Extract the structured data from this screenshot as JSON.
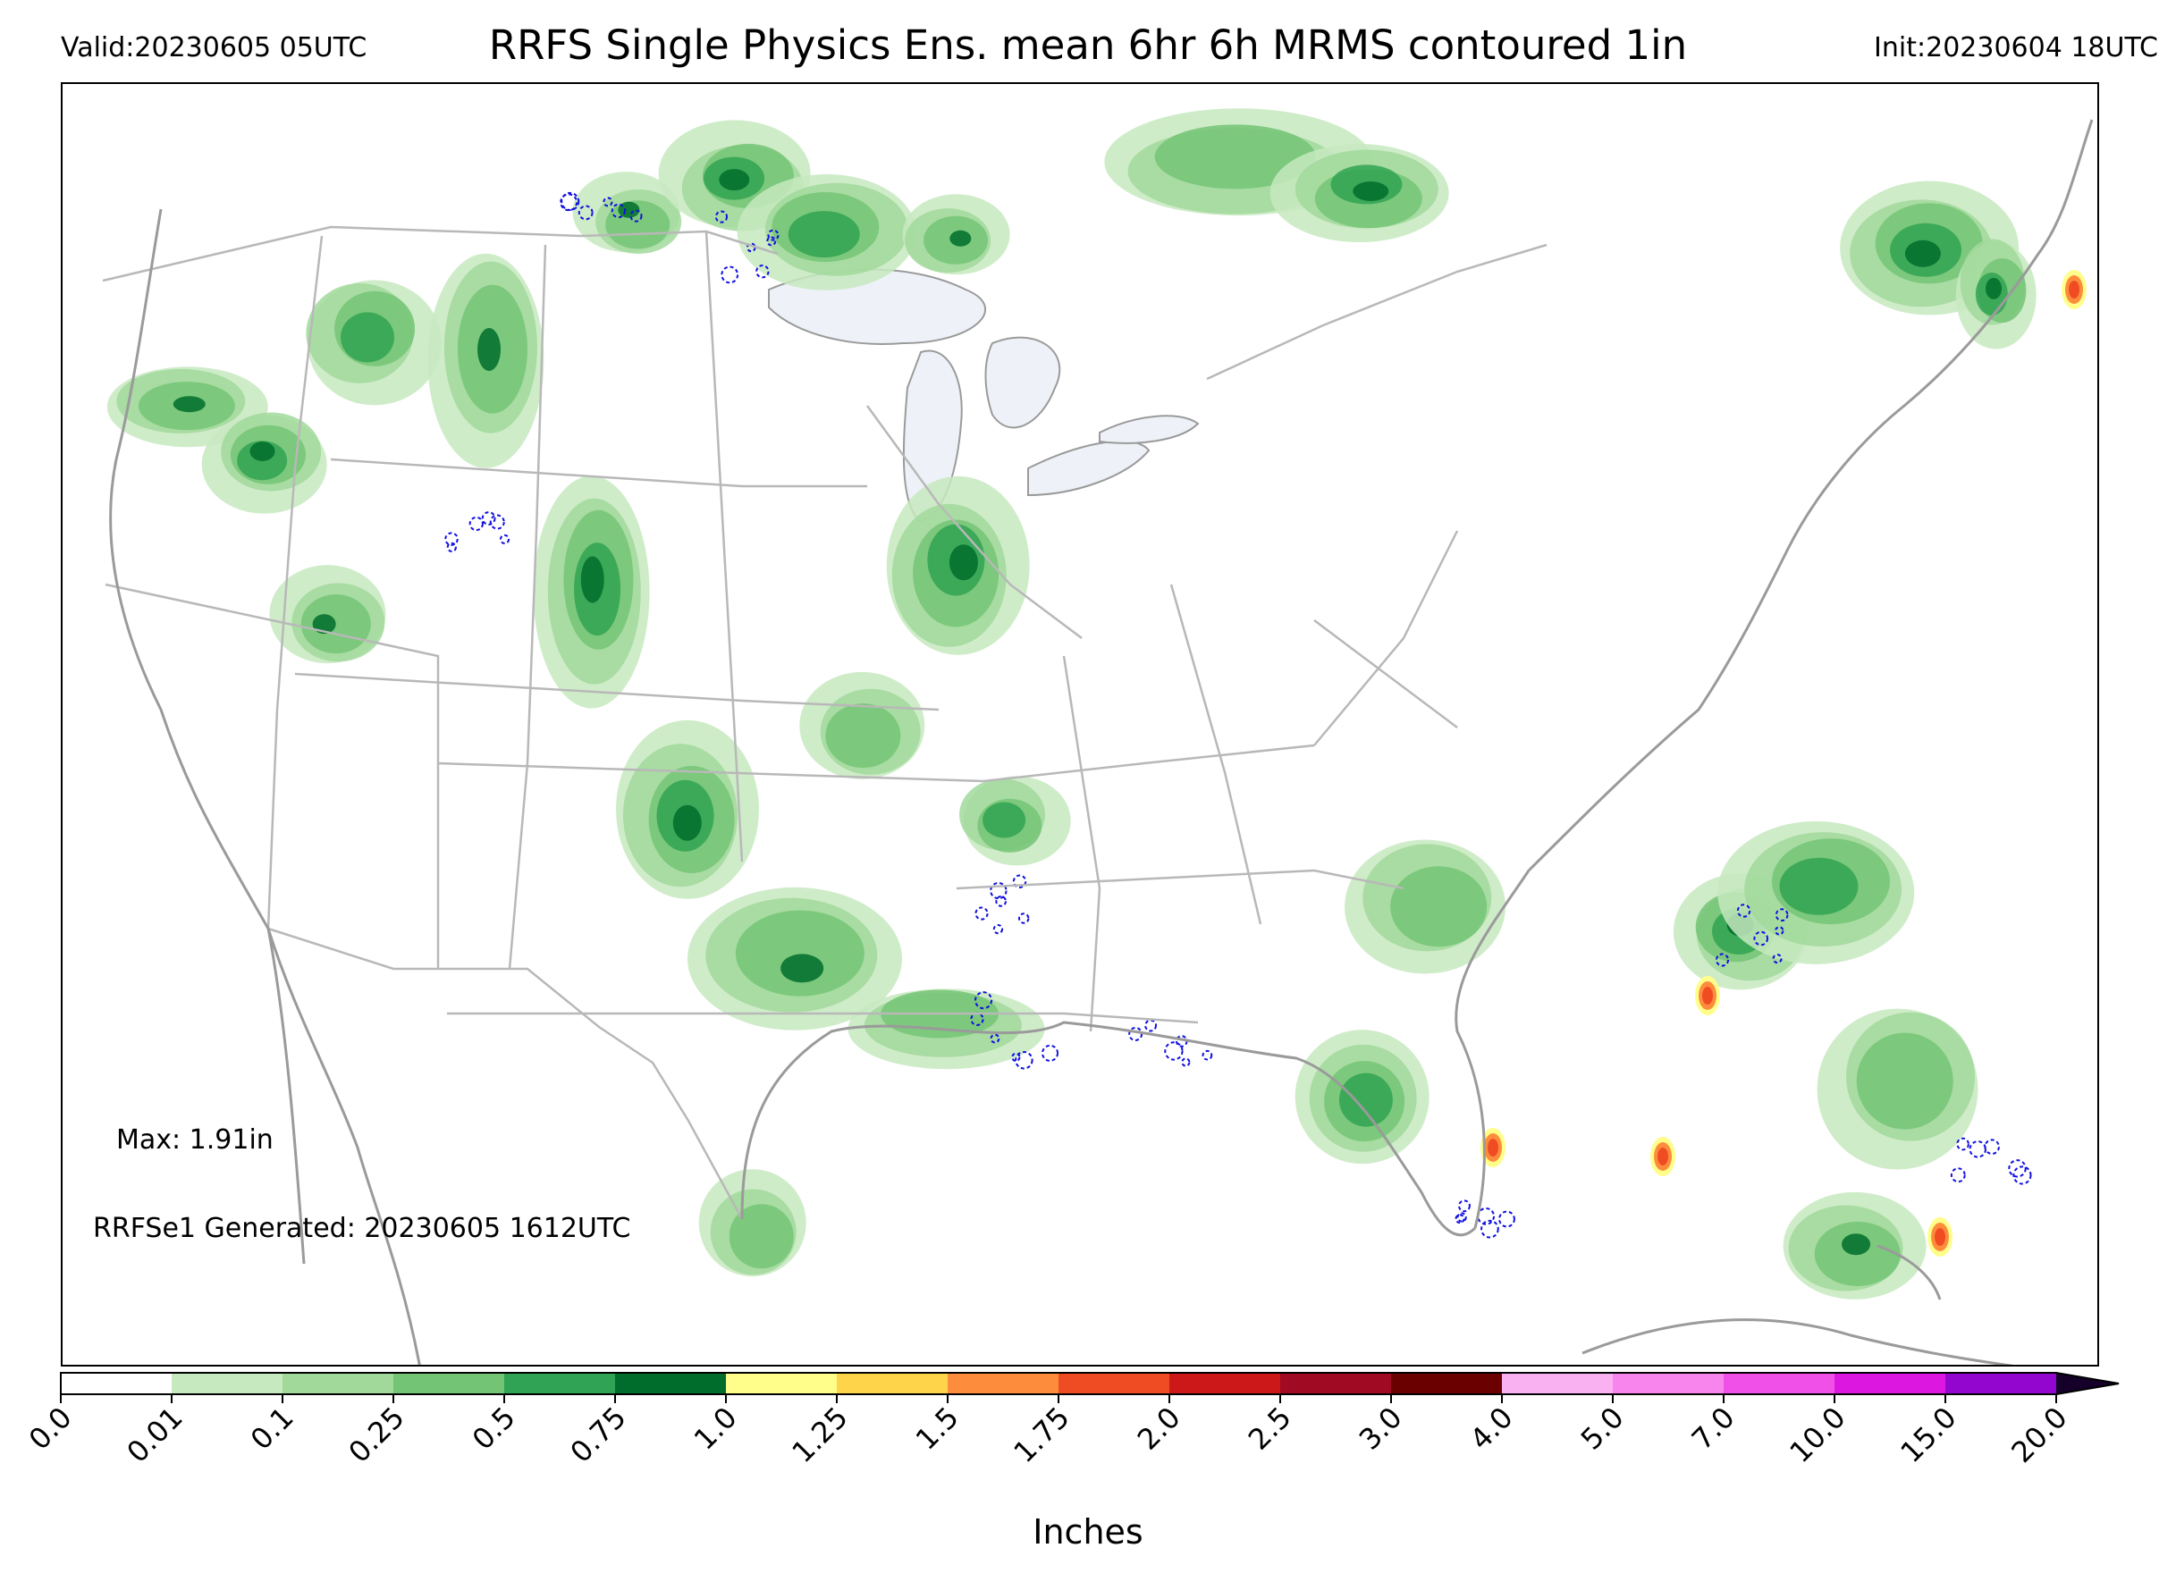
{
  "header": {
    "valid": "Valid:20230605 05UTC",
    "title": "RRFS Single Physics Ens. mean 6hr 6h MRMS contoured 1in",
    "init": "Init:20230604 18UTC"
  },
  "notes": {
    "max": "Max: 1.91in",
    "generated": "RRFSe1 Generated: 20230605 1612UTC"
  },
  "colorbar": {
    "label": "Inches",
    "ticks": [
      "0.0",
      "0.01",
      "0.1",
      "0.25",
      "0.5",
      "0.75",
      "1.0",
      "1.25",
      "1.5",
      "1.75",
      "2.0",
      "2.5",
      "3.0",
      "4.0",
      "5.0",
      "7.0",
      "10.0",
      "15.0",
      "20.0"
    ],
    "colors": [
      "#ffffff",
      "#c7e9c0",
      "#a1d99b",
      "#74c476",
      "#31a354",
      "#006d2c",
      "#fffe8b",
      "#fed54a",
      "#fd8d3c",
      "#f04c24",
      "#cc1818",
      "#a00a22",
      "#6b0000",
      "#f9b1f2",
      "#f884ee",
      "#f050e7",
      "#dc18e0",
      "#9306cf"
    ],
    "extend_color": "#140028"
  },
  "map": {
    "colors": {
      "state_lines": "#b8b8b8",
      "coast_lines": "#9a9a9a",
      "lakes": "#eef2f8",
      "mrms_contour": "#1010e0"
    }
  }
}
